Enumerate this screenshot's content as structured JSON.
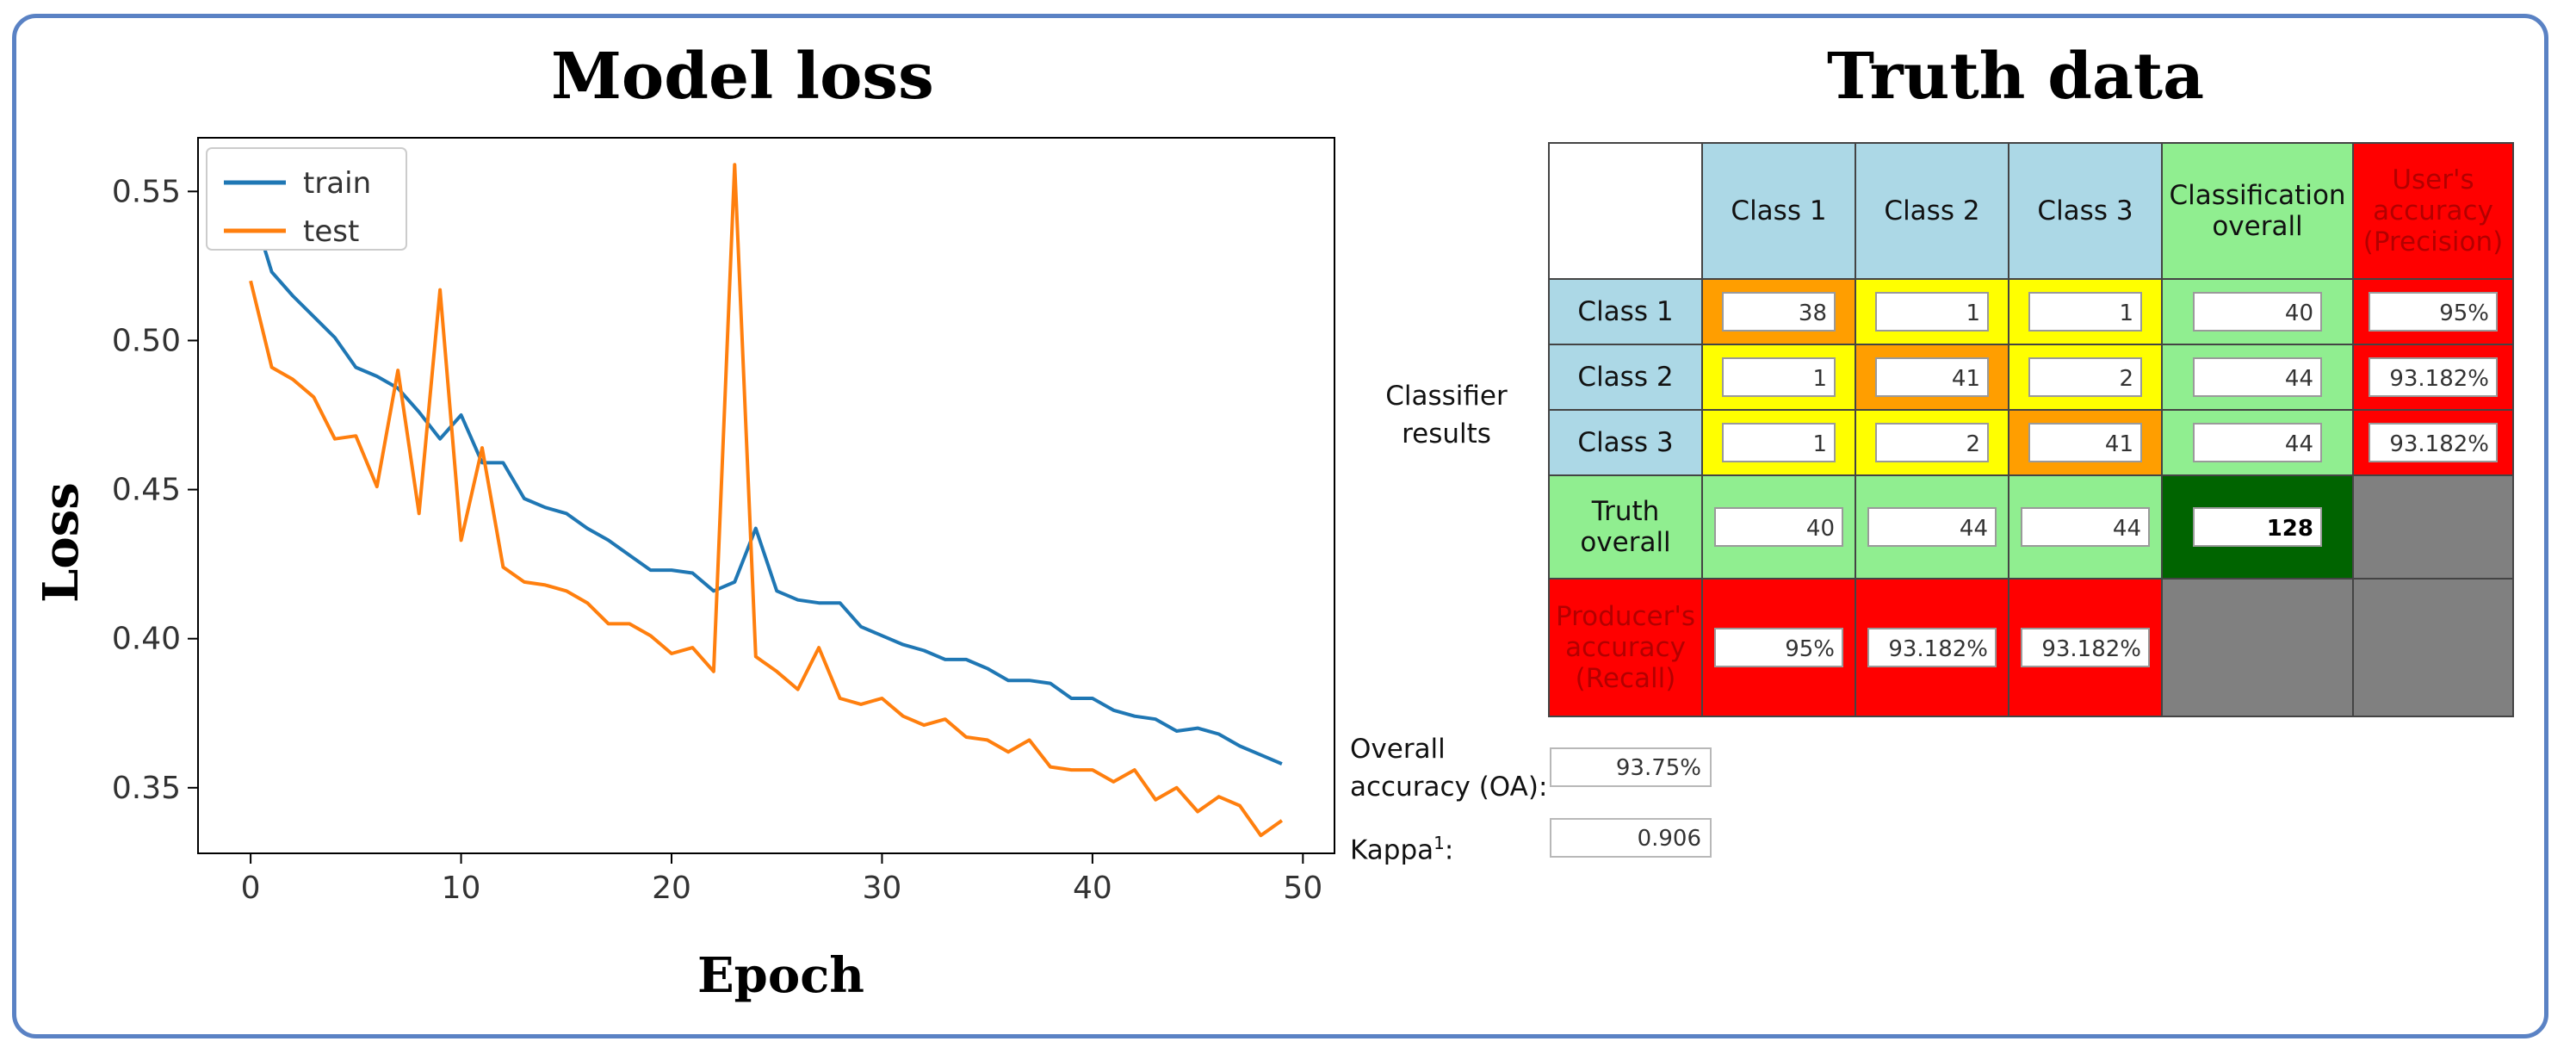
{
  "left_title": "Model loss",
  "right_title": "Truth data",
  "chart_data": {
    "type": "line",
    "title": "Model loss",
    "xlabel": "Epoch",
    "ylabel": "Loss",
    "xlim": [
      -2.5,
      51.5
    ],
    "ylim": [
      0.328,
      0.568
    ],
    "xticks": [
      0,
      10,
      20,
      30,
      40,
      50
    ],
    "yticks": [
      0.35,
      0.4,
      0.45,
      0.5,
      0.55
    ],
    "xtick_labels": [
      "0",
      "10",
      "20",
      "30",
      "40",
      "50"
    ],
    "ytick_labels": [
      "0.35",
      "0.40",
      "0.45",
      "0.50",
      "0.55"
    ],
    "legend": {
      "placement": "top-left",
      "entries": [
        "train",
        "test"
      ]
    },
    "series": [
      {
        "name": "train",
        "color": "#1f77b4",
        "x": [
          0,
          1,
          2,
          3,
          4,
          5,
          6,
          7,
          8,
          9,
          10,
          11,
          12,
          13,
          14,
          15,
          16,
          17,
          18,
          19,
          20,
          21,
          22,
          23,
          24,
          25,
          26,
          27,
          28,
          29,
          30,
          31,
          32,
          33,
          34,
          35,
          36,
          37,
          38,
          39,
          40,
          41,
          42,
          43,
          44,
          45,
          46,
          47,
          48,
          49
        ],
        "values": [
          0.546,
          0.523,
          0.515,
          0.508,
          0.501,
          0.491,
          0.488,
          0.484,
          0.476,
          0.467,
          0.475,
          0.459,
          0.459,
          0.447,
          0.444,
          0.442,
          0.437,
          0.433,
          0.428,
          0.423,
          0.423,
          0.422,
          0.416,
          0.419,
          0.437,
          0.416,
          0.413,
          0.412,
          0.412,
          0.404,
          0.401,
          0.398,
          0.396,
          0.393,
          0.393,
          0.39,
          0.386,
          0.386,
          0.385,
          0.38,
          0.38,
          0.376,
          0.374,
          0.373,
          0.369,
          0.37,
          0.368,
          0.364,
          0.361,
          0.358
        ]
      },
      {
        "name": "test",
        "color": "#ff7f0e",
        "x": [
          0,
          1,
          2,
          3,
          4,
          5,
          6,
          7,
          8,
          9,
          10,
          11,
          12,
          13,
          14,
          15,
          16,
          17,
          18,
          19,
          20,
          21,
          22,
          23,
          24,
          25,
          26,
          27,
          28,
          29,
          30,
          31,
          32,
          33,
          34,
          35,
          36,
          37,
          38,
          39,
          40,
          41,
          42,
          43,
          44,
          45,
          46,
          47,
          48,
          49
        ],
        "values": [
          0.52,
          0.491,
          0.487,
          0.481,
          0.467,
          0.468,
          0.451,
          0.49,
          0.442,
          0.517,
          0.433,
          0.464,
          0.424,
          0.419,
          0.418,
          0.416,
          0.412,
          0.405,
          0.405,
          0.401,
          0.395,
          0.397,
          0.389,
          0.559,
          0.394,
          0.389,
          0.383,
          0.397,
          0.38,
          0.378,
          0.38,
          0.374,
          0.371,
          0.373,
          0.367,
          0.366,
          0.362,
          0.366,
          0.357,
          0.356,
          0.356,
          0.352,
          0.356,
          0.346,
          0.35,
          0.342,
          0.347,
          0.344,
          0.334,
          0.339
        ]
      }
    ]
  },
  "matrix": {
    "col_headers": [
      "Class 1",
      "Class 2",
      "Class 3",
      "Classification overall",
      "User's accuracy (Precision)"
    ],
    "row_group_label": "Classifier results",
    "rows": [
      {
        "label": "Class 1",
        "cells": [
          "38",
          "1",
          "1",
          "40"
        ],
        "precision": "95%"
      },
      {
        "label": "Class 2",
        "cells": [
          "1",
          "41",
          "2",
          "44"
        ],
        "precision": "93.182%"
      },
      {
        "label": "Class 3",
        "cells": [
          "1",
          "2",
          "41",
          "44"
        ],
        "precision": "93.182%"
      }
    ],
    "truth_overall": {
      "label": "Truth overall",
      "cells": [
        "40",
        "44",
        "44"
      ],
      "total": "128"
    },
    "producers": {
      "label": "Producer's accuracy (Recall)",
      "cells": [
        "95%",
        "93.182%",
        "93.182%"
      ]
    },
    "overall_accuracy": {
      "label": "Overall accuracy (OA):",
      "value": "93.75%"
    },
    "kappa": {
      "label": "Kappa",
      "sup": "1",
      "suffix": ":",
      "value": "0.906"
    },
    "colors": {
      "header": "#acd8e6",
      "overall": "#90ee90",
      "accuracy": "#ff0000",
      "diagonal": "#ff9e00",
      "offdiagonal": "#ffff00",
      "total": "#006400",
      "empty": "#808080"
    }
  }
}
